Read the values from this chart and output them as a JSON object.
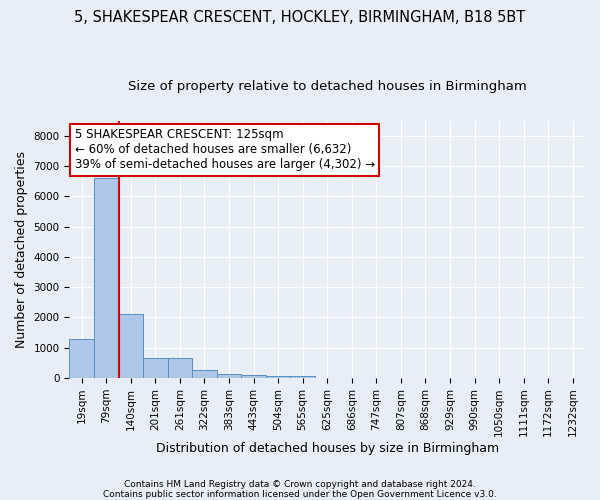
{
  "title_line1": "5, SHAKESPEAR CRESCENT, HOCKLEY, BIRMINGHAM, B18 5BT",
  "title_line2": "Size of property relative to detached houses in Birmingham",
  "xlabel": "Distribution of detached houses by size in Birmingham",
  "ylabel": "Number of detached properties",
  "footnote1": "Contains HM Land Registry data © Crown copyright and database right 2024.",
  "footnote2": "Contains public sector information licensed under the Open Government Licence v3.0.",
  "bar_labels": [
    "19sqm",
    "79sqm",
    "140sqm",
    "201sqm",
    "261sqm",
    "322sqm",
    "383sqm",
    "443sqm",
    "504sqm",
    "565sqm",
    "625sqm",
    "686sqm",
    "747sqm",
    "807sqm",
    "868sqm",
    "929sqm",
    "990sqm",
    "1050sqm",
    "1111sqm",
    "1172sqm",
    "1232sqm"
  ],
  "bar_values": [
    1300,
    6600,
    2100,
    650,
    650,
    250,
    130,
    90,
    50,
    50,
    0,
    0,
    0,
    0,
    0,
    0,
    0,
    0,
    0,
    0,
    0
  ],
  "bar_color": "#aec6e8",
  "bar_edgecolor": "#5a8fc2",
  "vline_x": 1.5,
  "annotation_line1": "5 SHAKESPEAR CRESCENT: 125sqm",
  "annotation_line2": "← 60% of detached houses are smaller (6,632)",
  "annotation_line3": "39% of semi-detached houses are larger (4,302) →",
  "annotation_box_color": "#ffffff",
  "annotation_box_edgecolor": "#cc0000",
  "vline_color": "#cc0000",
  "ylim": [
    0,
    8500
  ],
  "yticks": [
    0,
    1000,
    2000,
    3000,
    4000,
    5000,
    6000,
    7000,
    8000
  ],
  "background_color": "#e8eef8",
  "grid_color": "#ffffff",
  "title_fontsize": 10.5,
  "subtitle_fontsize": 9.5,
  "axis_label_fontsize": 9,
  "tick_fontsize": 7.5,
  "annot_fontsize": 8.5
}
